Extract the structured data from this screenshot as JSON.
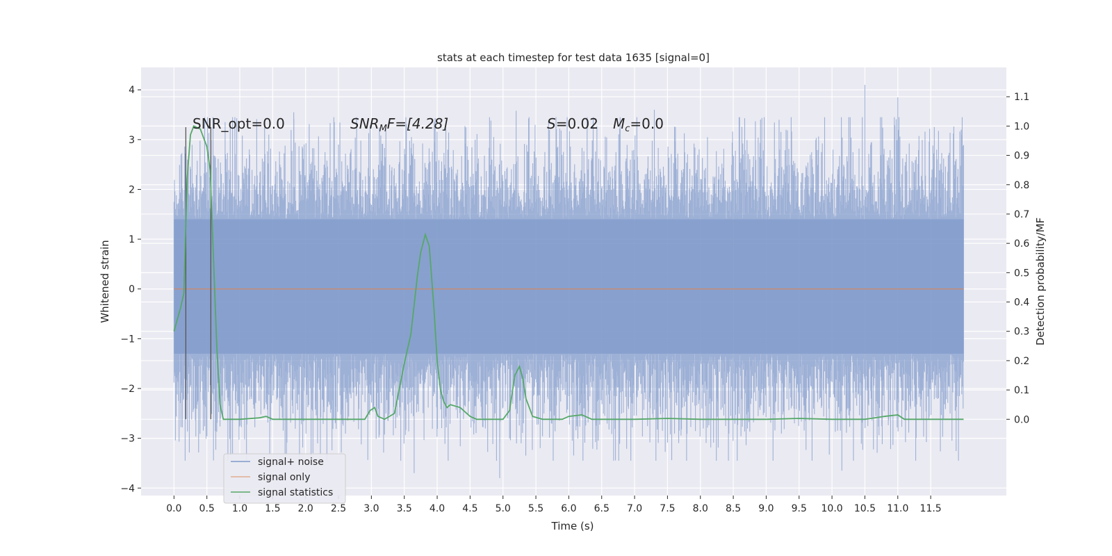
{
  "chart_data": {
    "type": "line",
    "title": "stats at each timestep for test data 1635 [signal=0]",
    "xlabel": "Time (s)",
    "ylabel": "Whitened strain",
    "y2label": "Detection probability/MF",
    "xlim": [
      -0.5,
      12.65
    ],
    "ylim": [
      -4.15,
      4.45
    ],
    "y2lim": [
      -0.26,
      1.2
    ],
    "x_ticks": [
      "0.0",
      "0.5",
      "1.0",
      "1.5",
      "2.0",
      "2.5",
      "3.0",
      "3.5",
      "4.0",
      "4.5",
      "5.0",
      "5.5",
      "6.0",
      "6.5",
      "7.0",
      "7.5",
      "8.0",
      "8.5",
      "9.0",
      "9.5",
      "10.0",
      "10.5",
      "11.0",
      "11.5"
    ],
    "y_ticks": [
      -4,
      -3,
      -2,
      -1,
      0,
      1,
      2,
      3,
      4
    ],
    "y2_ticks": [
      "0.0",
      "0.1",
      "0.2",
      "0.3",
      "0.4",
      "0.5",
      "0.6",
      "0.7",
      "0.8",
      "0.9",
      "1.0",
      "1.1"
    ],
    "grid": true,
    "legend_position": "lower-left",
    "annotations": {
      "snr_opt": "SNR_opt=0.0",
      "snr_mf_label": "SNR",
      "snr_mf_sub": "M",
      "snr_mf_rest": "F=[4.28]",
      "s_label": "S",
      "s_value": "=0.02",
      "mc_label": "M",
      "mc_sub": "c",
      "mc_value": "=0.0"
    },
    "vertical_markers_x": [
      0.18,
      0.56
    ],
    "series": [
      {
        "name": "signal+ noise",
        "color": "#7f9acb",
        "x_range": [
          0.0,
          12.0
        ],
        "band_typical": [
          -1.3,
          1.4
        ],
        "envelope_typical": [
          -2.6,
          2.6
        ],
        "notable_peaks": [
          {
            "x": 10.5,
            "y": 4.1
          },
          {
            "x": 11.0,
            "y": 3.85
          },
          {
            "x": 1.82,
            "y": 3.55
          },
          {
            "x": 7.3,
            "y": 3.6
          },
          {
            "x": 5.2,
            "y": 3.58
          },
          {
            "x": 3.65,
            "y": -3.7
          },
          {
            "x": 4.95,
            "y": -3.8
          },
          {
            "x": 10.15,
            "y": -3.65
          }
        ]
      },
      {
        "name": "signal only",
        "color": "#dd8452",
        "x": [
          0.0,
          12.0
        ],
        "y": [
          0.0,
          0.0
        ]
      },
      {
        "name": "signal statistics",
        "color": "#55a868",
        "axis": "right",
        "x": [
          0.0,
          0.1,
          0.15,
          0.2,
          0.25,
          0.3,
          0.4,
          0.45,
          0.5,
          0.55,
          0.6,
          0.65,
          0.7,
          0.75,
          1.0,
          1.3,
          1.4,
          1.5,
          2.0,
          2.5,
          2.9,
          2.98,
          3.05,
          3.1,
          3.2,
          3.35,
          3.5,
          3.6,
          3.7,
          3.75,
          3.82,
          3.88,
          3.95,
          4.0,
          4.05,
          4.1,
          4.15,
          4.2,
          4.35,
          4.5,
          4.6,
          4.7,
          5.0,
          5.1,
          5.18,
          5.25,
          5.3,
          5.35,
          5.45,
          5.6,
          5.9,
          6.0,
          6.2,
          6.35,
          7.0,
          7.5,
          8.0,
          8.5,
          9.0,
          9.5,
          10.0,
          10.5,
          10.8,
          11.0,
          11.1,
          12.0
        ],
        "y": [
          0.3,
          0.38,
          0.43,
          0.82,
          0.97,
          1.0,
          0.99,
          0.96,
          0.93,
          0.85,
          0.55,
          0.25,
          0.05,
          0.0,
          0.0,
          0.005,
          0.01,
          0.0,
          0.0,
          0.0,
          0.0,
          0.03,
          0.04,
          0.01,
          0.0,
          0.02,
          0.19,
          0.29,
          0.49,
          0.57,
          0.63,
          0.59,
          0.38,
          0.2,
          0.1,
          0.06,
          0.04,
          0.05,
          0.04,
          0.01,
          0.0,
          0.0,
          0.0,
          0.03,
          0.15,
          0.18,
          0.14,
          0.07,
          0.01,
          0.0,
          0.0,
          0.01,
          0.015,
          0.0,
          0.0,
          0.003,
          0.0,
          0.0,
          0.0,
          0.003,
          0.0,
          0.0,
          0.01,
          0.015,
          0.0,
          0.0
        ]
      }
    ]
  }
}
